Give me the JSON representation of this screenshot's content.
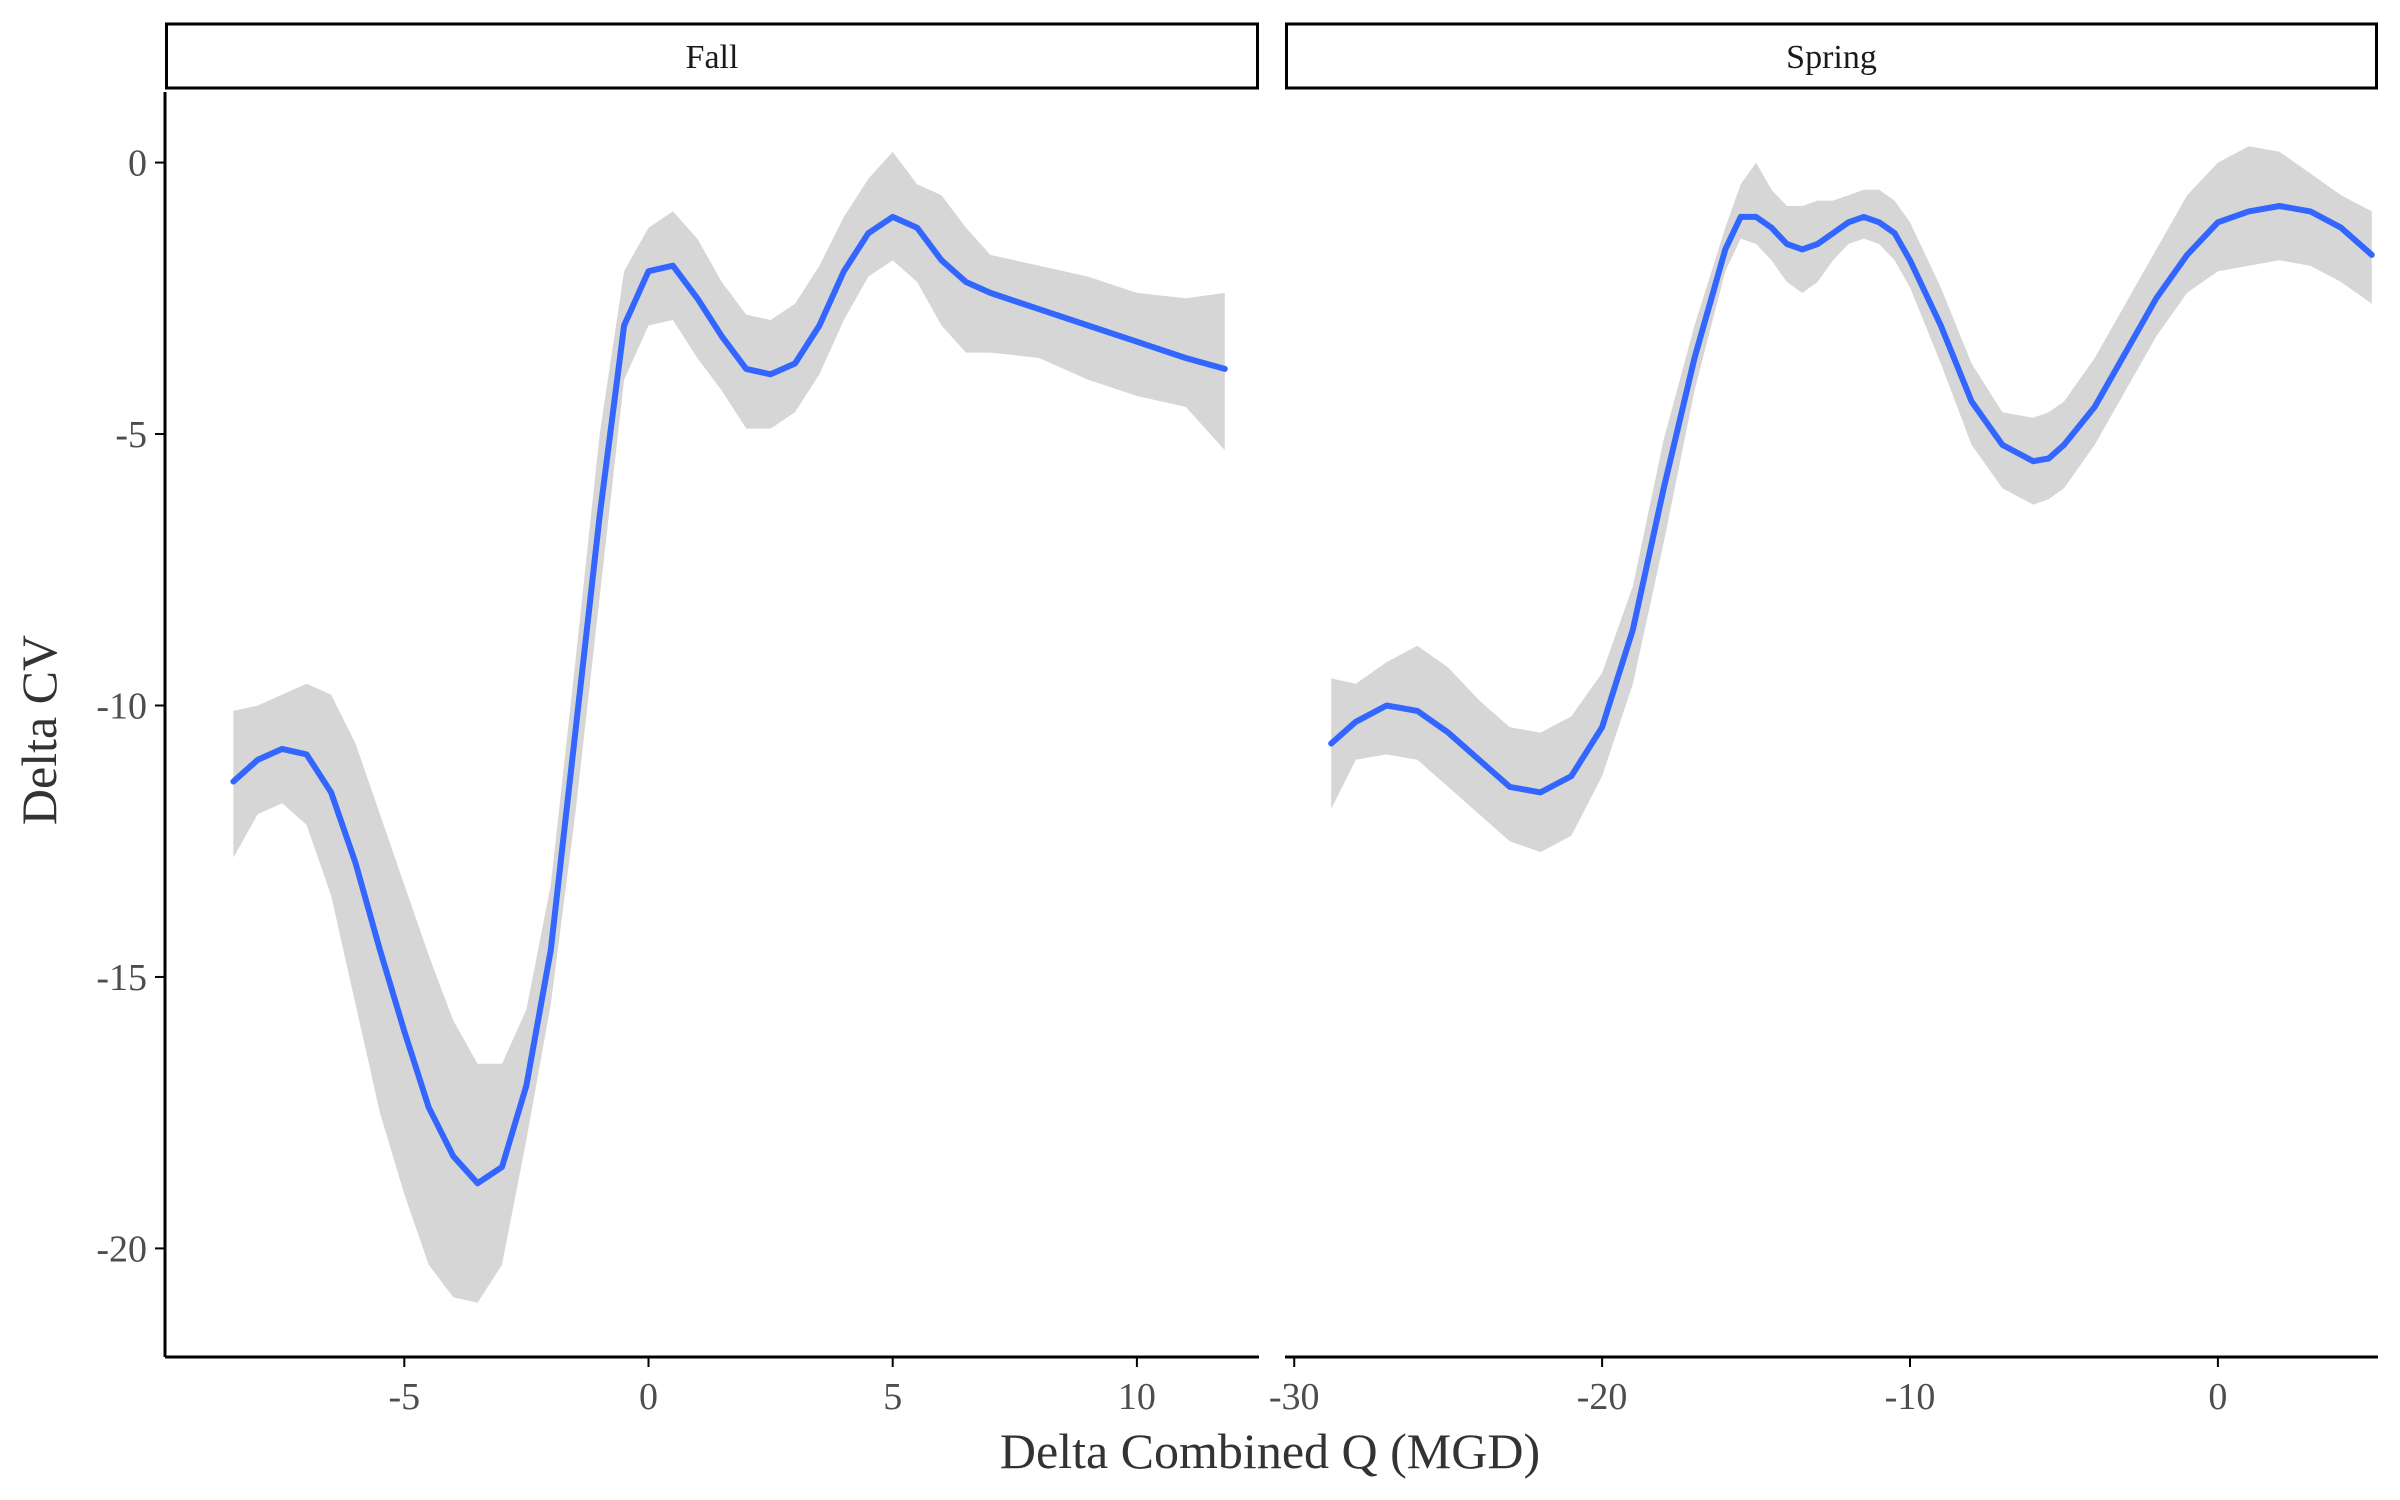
{
  "chart_data": {
    "type": "line",
    "xlabel": "Delta Combined Q (MGD)",
    "ylabel": "Delta CV",
    "ylim": [
      -22,
      1.3
    ],
    "yticks": [
      0,
      -5,
      -10,
      -15,
      -20
    ],
    "grid": false,
    "legend": "none",
    "colors": {
      "line": "#3366ff",
      "ribbon": "#d6d6d6",
      "axis": "#000000"
    },
    "panels": [
      {
        "label": "Fall",
        "xlim": [
          -9.9,
          12.5
        ],
        "xticks": [
          -5,
          0,
          5,
          10
        ],
        "series": [
          {
            "x": [
              -8.5,
              -8,
              -7.5,
              -7,
              -6.5,
              -6,
              -5.5,
              -5,
              -4.5,
              -4,
              -3.5,
              -3,
              -2.5,
              -2,
              -1.5,
              -1,
              -0.5,
              0,
              0.5,
              1,
              1.5,
              2,
              2.5,
              3,
              3.5,
              4,
              4.5,
              5,
              5.5,
              6,
              6.5,
              7,
              8,
              9,
              10,
              11,
              11.8
            ],
            "y": [
              -11.4,
              -11.0,
              -10.8,
              -10.9,
              -11.6,
              -12.9,
              -14.5,
              -16.0,
              -17.4,
              -18.3,
              -18.8,
              -18.5,
              -17.0,
              -14.5,
              -10.5,
              -6.5,
              -3.0,
              -2.0,
              -1.9,
              -2.5,
              -3.2,
              -3.8,
              -3.9,
              -3.7,
              -3.0,
              -2.0,
              -1.3,
              -1.0,
              -1.2,
              -1.8,
              -2.2,
              -2.4,
              -2.7,
              -3.0,
              -3.3,
              -3.6,
              -3.8
            ],
            "lower": [
              -12.8,
              -12.0,
              -11.8,
              -12.2,
              -13.5,
              -15.5,
              -17.5,
              -19.0,
              -20.3,
              -20.9,
              -21.0,
              -20.3,
              -18.0,
              -15.5,
              -12.0,
              -8.0,
              -4.0,
              -3.0,
              -2.9,
              -3.6,
              -4.2,
              -4.9,
              -4.9,
              -4.6,
              -3.9,
              -2.9,
              -2.1,
              -1.8,
              -2.2,
              -3.0,
              -3.5,
              -3.5,
              -3.6,
              -4.0,
              -4.3,
              -4.5,
              -5.3
            ],
            "upper": [
              -10.1,
              -10.0,
              -9.8,
              -9.6,
              -9.8,
              -10.7,
              -12.0,
              -13.3,
              -14.6,
              -15.8,
              -16.6,
              -16.6,
              -15.6,
              -13.3,
              -9.2,
              -5.0,
              -2.0,
              -1.2,
              -0.9,
              -1.4,
              -2.2,
              -2.8,
              -2.9,
              -2.6,
              -1.9,
              -1.0,
              -0.3,
              0.2,
              -0.4,
              -0.6,
              -1.2,
              -1.7,
              -1.9,
              -2.1,
              -2.4,
              -2.5,
              -2.4
            ]
          }
        ]
      },
      {
        "label": "Spring",
        "xlim": [
          -30.3,
          5.2
        ],
        "xticks": [
          -30,
          -20,
          -10,
          0
        ],
        "series": [
          {
            "x": [
              -28.8,
              -28,
              -27,
              -26,
              -25,
              -24,
              -23,
              -22,
              -21,
              -20,
              -19,
              -18,
              -17,
              -16,
              -15.5,
              -15,
              -14.5,
              -14,
              -13.5,
              -13,
              -12.5,
              -12,
              -11.5,
              -11,
              -10.5,
              -10,
              -9,
              -8,
              -7,
              -6,
              -5.5,
              -5,
              -4,
              -3,
              -2,
              -1,
              0,
              1,
              2,
              3,
              4,
              5
            ],
            "y": [
              -10.7,
              -10.3,
              -10.0,
              -10.1,
              -10.5,
              -11.0,
              -11.5,
              -11.6,
              -11.3,
              -10.4,
              -8.6,
              -6.0,
              -3.6,
              -1.6,
              -1.0,
              -1.0,
              -1.2,
              -1.5,
              -1.6,
              -1.5,
              -1.3,
              -1.1,
              -1.0,
              -1.1,
              -1.3,
              -1.8,
              -3.0,
              -4.4,
              -5.2,
              -5.5,
              -5.45,
              -5.2,
              -4.5,
              -3.5,
              -2.5,
              -1.7,
              -1.1,
              -0.9,
              -0.8,
              -0.9,
              -1.2,
              -1.7
            ],
            "lower": [
              -11.9,
              -11.0,
              -10.9,
              -11.0,
              -11.5,
              -12.0,
              -12.5,
              -12.7,
              -12.4,
              -11.3,
              -9.6,
              -7.0,
              -4.2,
              -2.0,
              -1.4,
              -1.5,
              -1.8,
              -2.2,
              -2.4,
              -2.2,
              -1.8,
              -1.5,
              -1.4,
              -1.5,
              -1.8,
              -2.3,
              -3.7,
              -5.2,
              -6.0,
              -6.3,
              -6.2,
              -6.0,
              -5.2,
              -4.2,
              -3.2,
              -2.4,
              -2.0,
              -1.9,
              -1.8,
              -1.9,
              -2.2,
              -2.6
            ],
            "upper": [
              -9.5,
              -9.6,
              -9.2,
              -8.9,
              -9.3,
              -9.9,
              -10.4,
              -10.5,
              -10.2,
              -9.4,
              -7.8,
              -5.1,
              -3.0,
              -1.2,
              -0.4,
              0.0,
              -0.5,
              -0.8,
              -0.8,
              -0.7,
              -0.7,
              -0.6,
              -0.5,
              -0.5,
              -0.7,
              -1.1,
              -2.3,
              -3.7,
              -4.6,
              -4.7,
              -4.6,
              -4.4,
              -3.6,
              -2.6,
              -1.6,
              -0.6,
              0.0,
              0.3,
              0.2,
              -0.2,
              -0.6,
              -0.9
            ]
          }
        ]
      }
    ]
  }
}
